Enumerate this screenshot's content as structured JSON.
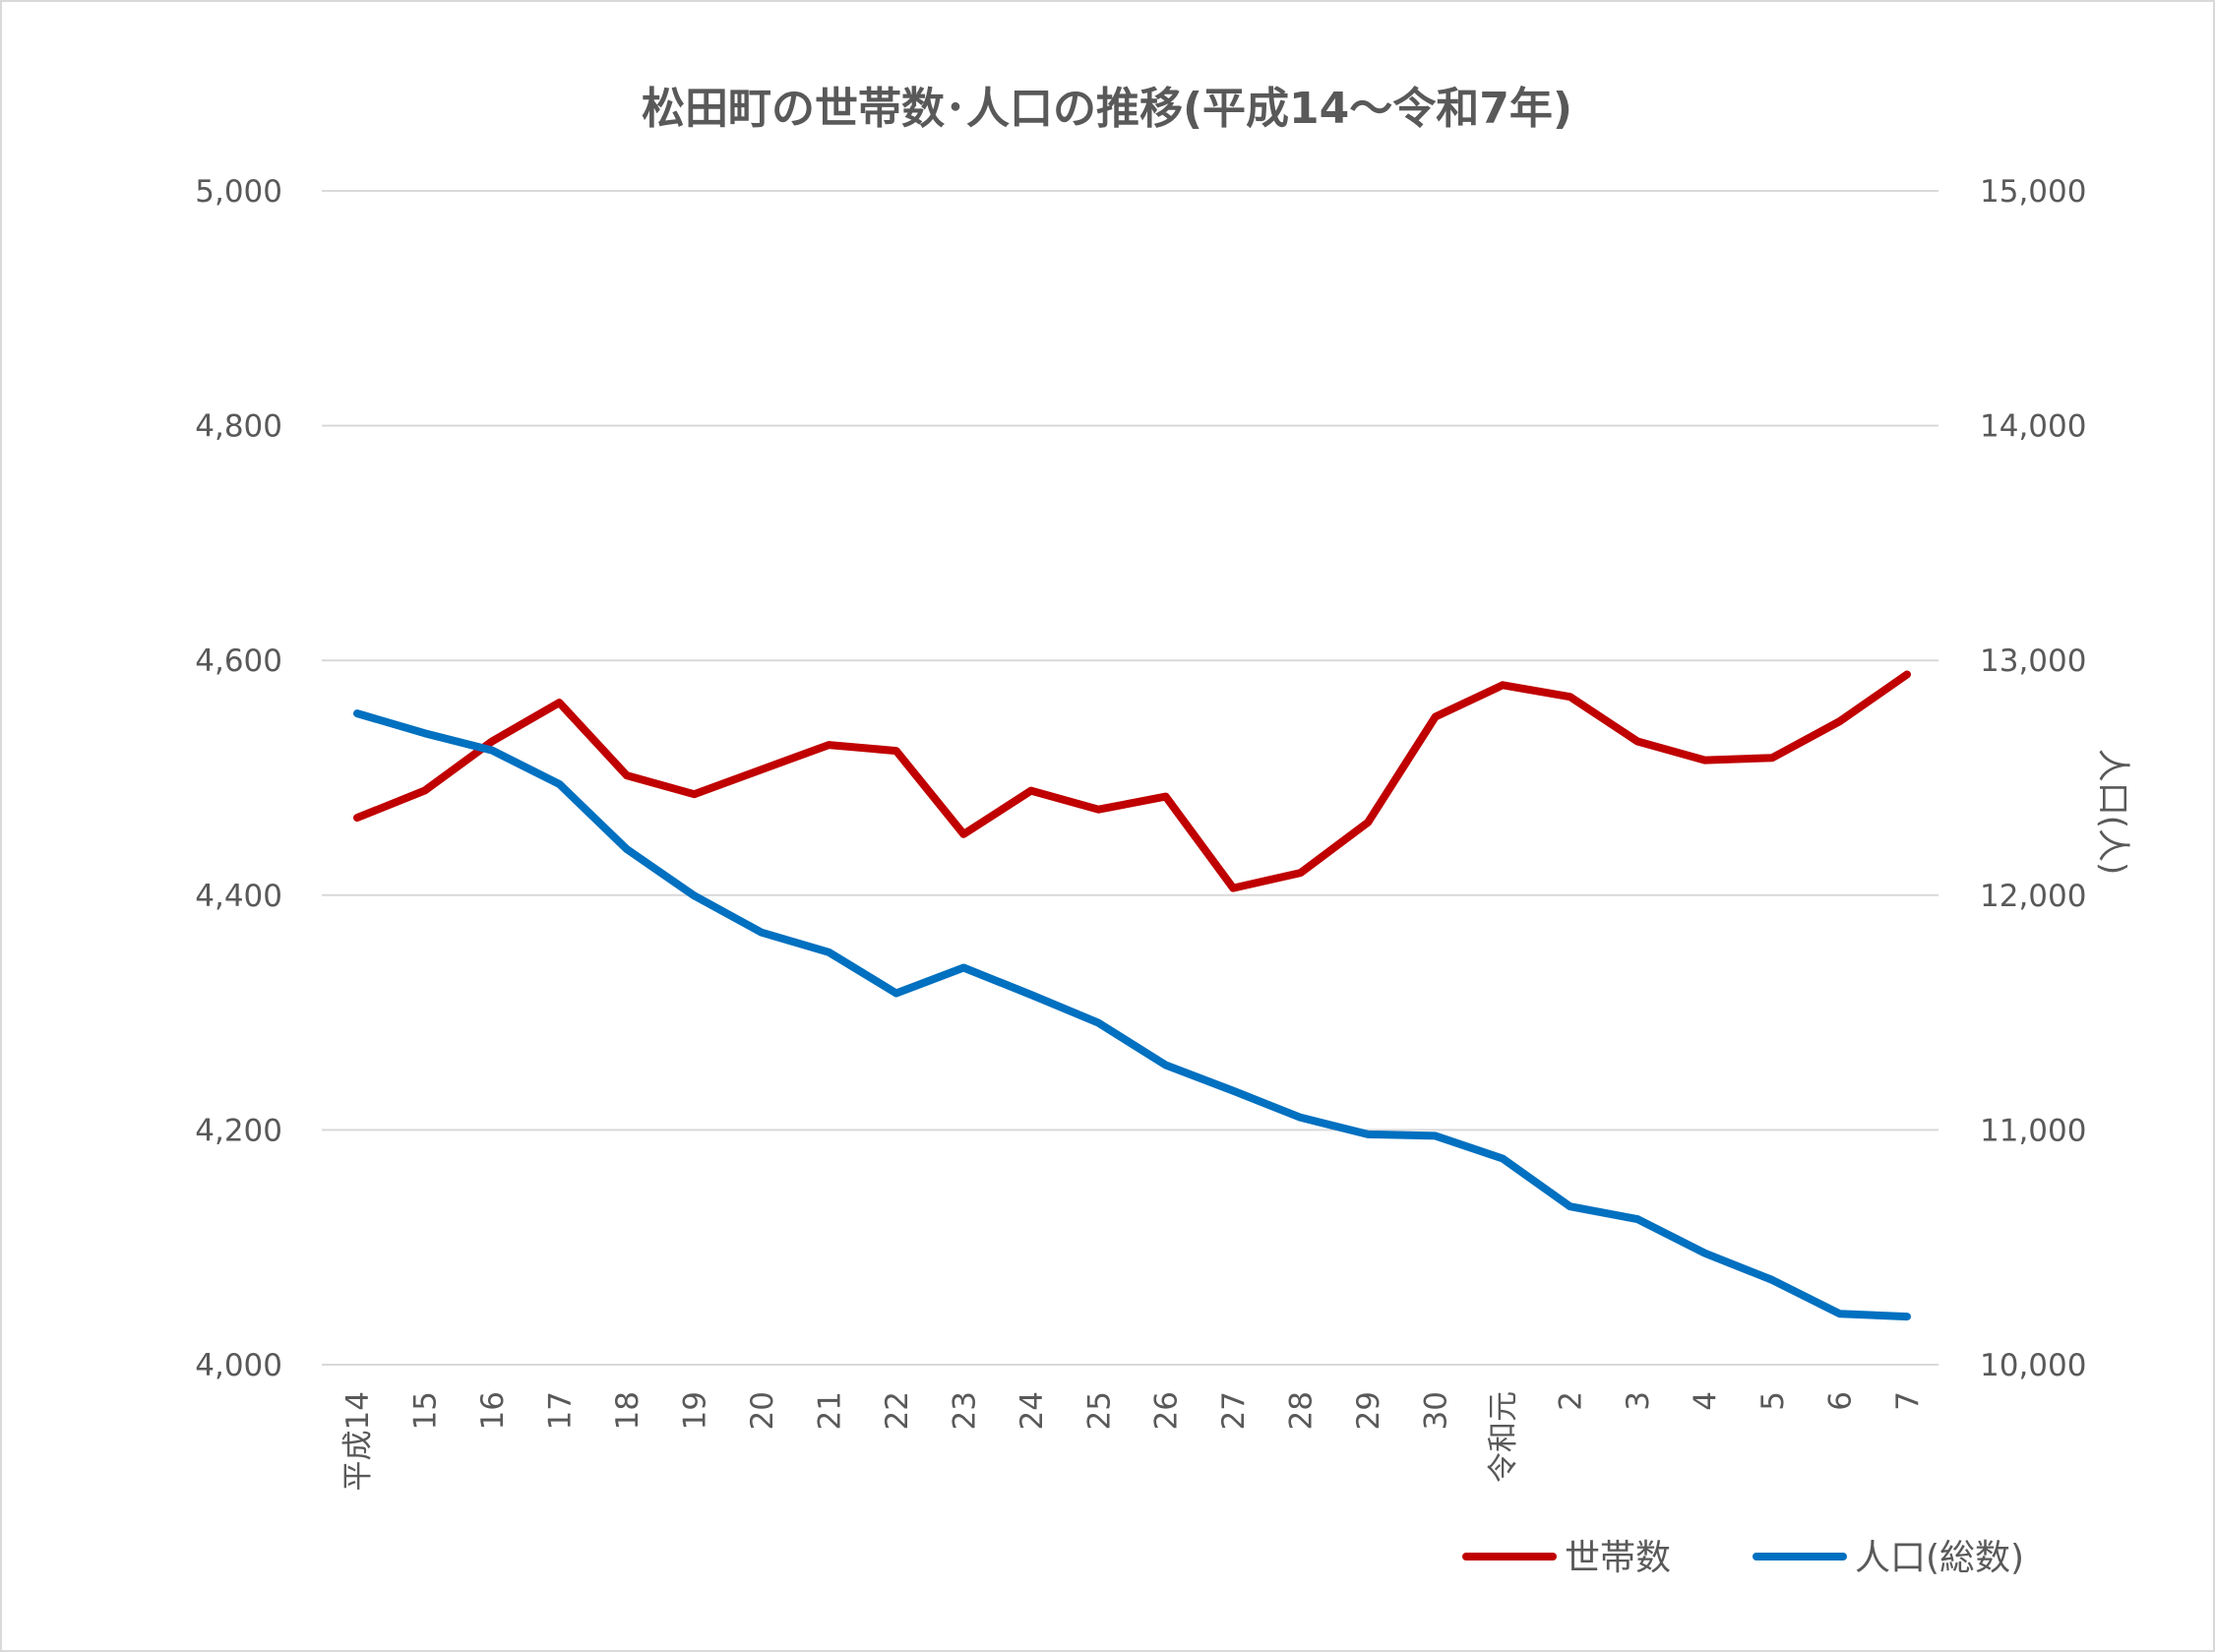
{
  "chart_data": {
    "type": "line",
    "title": "松田町の世帯数･人口の推移(平成14～令和7年)",
    "xlabel": "",
    "ylabel": "",
    "y2label": "人口(人)",
    "categories": [
      "平成14",
      "15",
      "16",
      "17",
      "18",
      "19",
      "20",
      "21",
      "22",
      "23",
      "24",
      "25",
      "26",
      "27",
      "28",
      "29",
      "30",
      "令和元",
      "2",
      "3",
      "4",
      "5",
      "6",
      "7"
    ],
    "ylim": [
      4000,
      5000
    ],
    "y2lim": [
      10000,
      15000
    ],
    "yticks": [
      "4,000",
      "4,200",
      "4,400",
      "4,600",
      "4,800",
      "5,000"
    ],
    "y2ticks": [
      "10,000",
      "11,000",
      "12,000",
      "13,000",
      "14,000",
      "15,000"
    ],
    "grid": true,
    "legend_position": "bottom-right",
    "series": [
      {
        "name": "世帯数",
        "axis": "left",
        "color": "#C00000",
        "values": [
          4466,
          4489,
          4531,
          4564,
          4502,
          4486,
          4507,
          4528,
          4523,
          4452,
          4489,
          4473,
          4484,
          4406,
          4419,
          4462,
          4552,
          4579,
          4569,
          4531,
          4515,
          4517,
          4548,
          4588
        ]
      },
      {
        "name": "人口(総数)",
        "axis": "right",
        "color": "#0070C0",
        "values": [
          12774,
          12690,
          12617,
          12473,
          12196,
          11998,
          11841,
          11757,
          11582,
          11691,
          11576,
          11456,
          11276,
          11167,
          11053,
          10981,
          10975,
          10878,
          10674,
          10620,
          10475,
          10361,
          10217,
          10205
        ]
      }
    ]
  }
}
